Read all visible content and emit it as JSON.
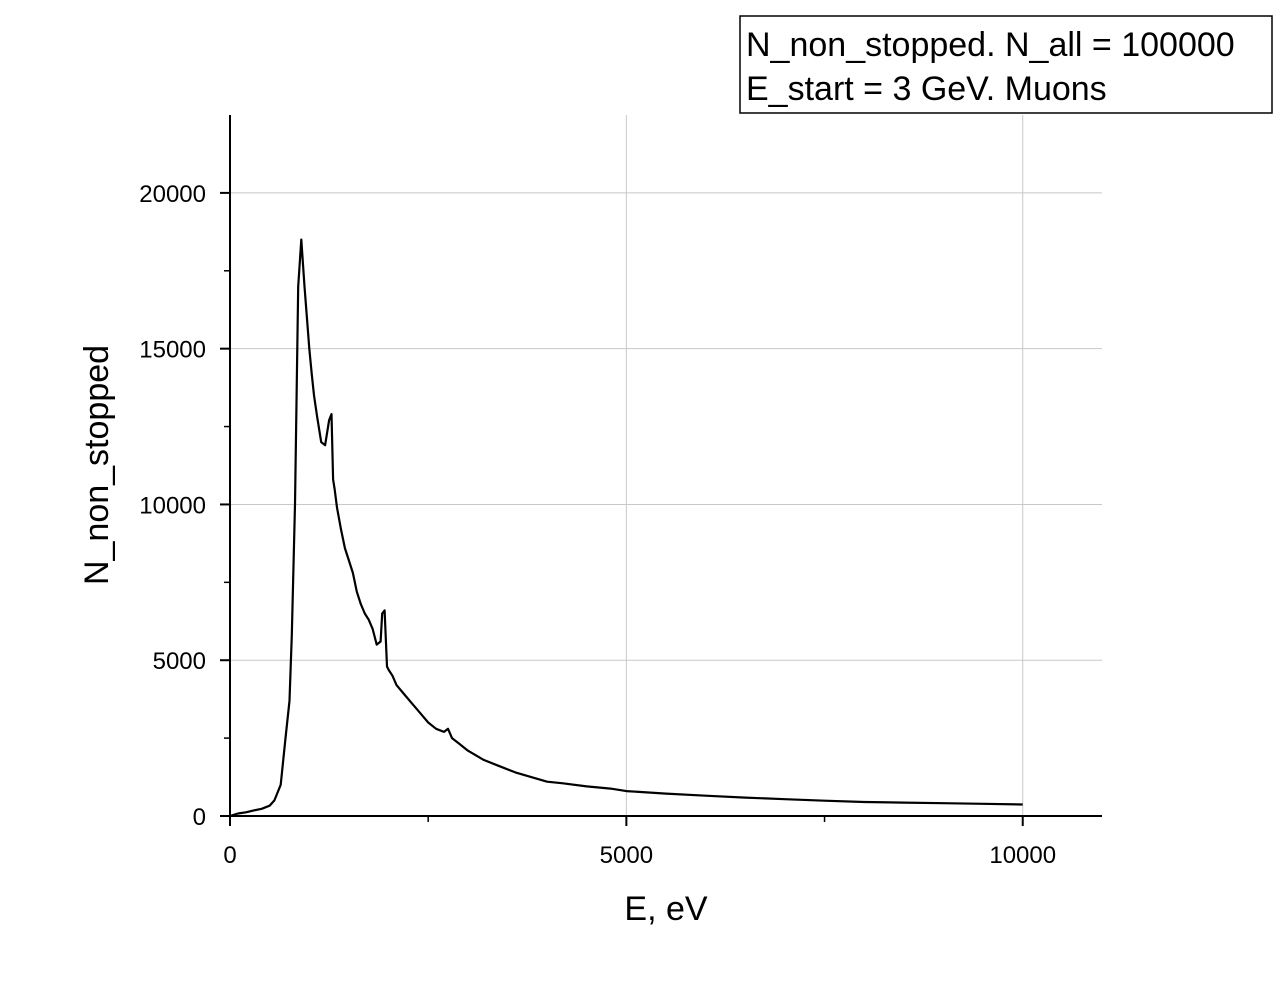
{
  "chart_data": {
    "type": "line",
    "title": "",
    "xlabel": "E, eV",
    "ylabel": "N_non_stopped",
    "xlim": [
      0,
      11000
    ],
    "ylim": [
      0,
      22500
    ],
    "x_ticks": [
      0,
      5000,
      10000
    ],
    "y_ticks": [
      0,
      5000,
      10000,
      15000,
      20000
    ],
    "grid": true,
    "legend": {
      "placement": "top-right",
      "lines": [
        "N_non_stopped. N_all = 100000",
        "E_start = 3 GeV. Muons"
      ]
    },
    "series": [
      {
        "color": "#000000",
        "x": [
          0,
          100,
          200,
          300,
          400,
          500,
          560,
          640,
          700,
          750,
          780,
          820,
          860,
          900,
          940,
          970,
          1000,
          1030,
          1060,
          1100,
          1150,
          1200,
          1250,
          1280,
          1300,
          1320,
          1350,
          1400,
          1450,
          1500,
          1550,
          1600,
          1650,
          1700,
          1750,
          1800,
          1850,
          1900,
          1920,
          1950,
          1980,
          2000,
          2050,
          2100,
          2200,
          2300,
          2400,
          2500,
          2600,
          2700,
          2750,
          2800,
          2900,
          3000,
          3200,
          3400,
          3600,
          3800,
          4000,
          4200,
          4500,
          4800,
          5000,
          5500,
          6000,
          6500,
          7000,
          7500,
          8000,
          8500,
          9000,
          9500,
          10000
        ],
        "y": [
          0,
          80,
          120,
          180,
          230,
          330,
          500,
          1000,
          2500,
          3700,
          5800,
          10000,
          17000,
          18500,
          17000,
          16000,
          15000,
          14200,
          13500,
          12800,
          12000,
          11900,
          12700,
          12900,
          10800,
          10500,
          9900,
          9200,
          8600,
          8200,
          7800,
          7200,
          6800,
          6500,
          6300,
          6000,
          5500,
          5600,
          6500,
          6600,
          4800,
          4700,
          4500,
          4200,
          3900,
          3600,
          3300,
          3000,
          2800,
          2700,
          2800,
          2500,
          2300,
          2100,
          1800,
          1600,
          1400,
          1250,
          1100,
          1050,
          950,
          880,
          800,
          720,
          650,
          590,
          540,
          490,
          450,
          430,
          410,
          390,
          370
        ]
      }
    ]
  }
}
